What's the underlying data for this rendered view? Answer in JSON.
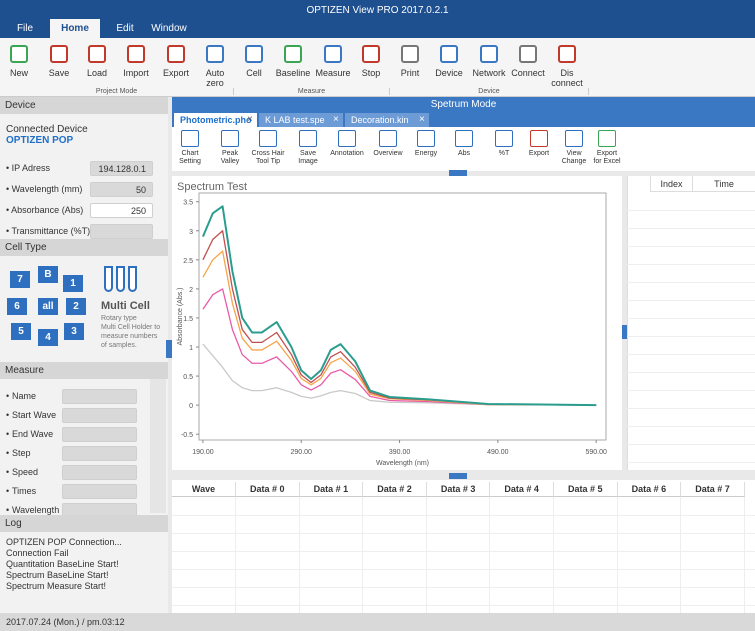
{
  "title": "OPTIZEN View PRO 2017.0.2.1",
  "menu": [
    "File",
    "Home",
    "Edit",
    "Window"
  ],
  "toolbar": {
    "buttons": [
      "New",
      "Save",
      "Load",
      "Import",
      "Export",
      "Auto\nzero",
      "Cell",
      "Baseline",
      "Measure",
      "Stop",
      "Print",
      "Device",
      "Network",
      "Connect",
      "Dis\nconnect"
    ],
    "groups": [
      "Project Mode",
      "Measure",
      "Device"
    ]
  },
  "device": {
    "header": "Device",
    "connected_label": "Connected Device",
    "device_name": "OPTIZEN POP",
    "fields": [
      {
        "label": "IP Adress",
        "value": "194.128.0.1"
      },
      {
        "label": "Wavelength (mm)",
        "value": "50"
      },
      {
        "label": "Absorbance (Abs)",
        "value": "250"
      },
      {
        "label": "Transmittance (%T)"
      }
    ]
  },
  "cell_type": {
    "header": "Cell Type",
    "cells": [
      "7",
      "B",
      "1",
      "6",
      "all",
      "2",
      "5",
      "4",
      "3"
    ],
    "name": "Multi Cell",
    "description": "Rotary type\nMulti Cell Holder to\nmeasure numbers\nof samples."
  },
  "measure": {
    "header": "Measure",
    "fields": [
      "Name",
      "Start Wave",
      "End Wave",
      "Step",
      "Speed",
      "Times",
      "Wavelength"
    ]
  },
  "log": {
    "header": "Log",
    "lines": [
      "OPTIZEN POP Connection...",
      "Connection Fail",
      "Quantitation BaseLine Start!",
      "Spectrum BaseLine Start!",
      "Spectrum Measure Start!"
    ]
  },
  "status": "2017.07.24 (Mon.)  /  pm.03:12",
  "main": {
    "mode": "Spetrum Mode",
    "tabs": [
      "Photometric.pho",
      "K LAB test.spe",
      "Decoration.kin"
    ],
    "tools": [
      "Chart\nSetting",
      "Peak\nValley",
      "Cross Hair\nTool Tip",
      "Save\nImage",
      "Annotation",
      "Overview",
      "Energy",
      "Abs",
      "%T",
      "Export",
      "View\nChange",
      "Export\nfor Excel"
    ]
  },
  "side_table": {
    "columns": [
      "Index",
      "Time"
    ]
  },
  "data_table": {
    "columns": [
      "Wave",
      "Data # 0",
      "Data # 1",
      "Data # 2",
      "Data # 3",
      "Data # 4",
      "Data # 5",
      "Data # 6",
      "Data # 7"
    ]
  },
  "spectrum_chart": {
    "type": "line",
    "title": "Spectrum Test",
    "x_label": "Wavelength (nm)",
    "y_label": "Absorbance (Abs.)",
    "xlim": [
      186,
      600
    ],
    "ylim": [
      -0.6,
      3.65
    ],
    "xticks": [
      {
        "value": 190,
        "label": "190.00"
      },
      {
        "value": 290,
        "label": "290.00"
      },
      {
        "value": 390,
        "label": "390.00"
      },
      {
        "value": 490,
        "label": "490.00"
      },
      {
        "value": 590,
        "label": "590.00"
      }
    ],
    "yticks": [
      -0.5,
      0,
      0.5,
      1,
      1.5,
      2,
      2.5,
      3,
      3.5
    ],
    "x": [
      190,
      200,
      210,
      220,
      230,
      240,
      250,
      265,
      280,
      290,
      300,
      310,
      320,
      330,
      345,
      360,
      380,
      420,
      480,
      590
    ],
    "series": [
      {
        "color": "#c9c9c9",
        "values": [
          1.05,
          0.85,
          0.65,
          0.42,
          0.3,
          0.25,
          0.25,
          0.3,
          0.22,
          0.15,
          0.12,
          0.16,
          0.22,
          0.25,
          0.2,
          0.08,
          0.05,
          0.04,
          0.01,
          0
        ]
      },
      {
        "color": "#e95aa8",
        "values": [
          1.65,
          1.9,
          2.0,
          1.3,
          0.87,
          0.72,
          0.72,
          0.83,
          0.58,
          0.35,
          0.26,
          0.35,
          0.55,
          0.61,
          0.44,
          0.15,
          0.08,
          0.06,
          0.01,
          0
        ]
      },
      {
        "color": "#f5a54a",
        "values": [
          2.2,
          2.5,
          2.65,
          1.75,
          1.15,
          0.95,
          0.95,
          1.1,
          0.77,
          0.46,
          0.35,
          0.46,
          0.73,
          0.81,
          0.58,
          0.19,
          0.11,
          0.08,
          0.01,
          0
        ]
      },
      {
        "color": "#c0504d",
        "values": [
          2.5,
          2.85,
          3.0,
          2.0,
          1.3,
          1.08,
          1.08,
          1.25,
          0.87,
          0.52,
          0.39,
          0.52,
          0.83,
          0.92,
          0.65,
          0.22,
          0.12,
          0.09,
          0.02,
          0
        ]
      },
      {
        "color": "#2a9d8f",
        "values": [
          2.9,
          3.3,
          3.42,
          2.3,
          1.5,
          1.25,
          1.25,
          1.43,
          1.0,
          0.6,
          0.45,
          0.6,
          0.95,
          1.05,
          0.75,
          0.25,
          0.14,
          0.1,
          0.02,
          0
        ]
      }
    ]
  }
}
